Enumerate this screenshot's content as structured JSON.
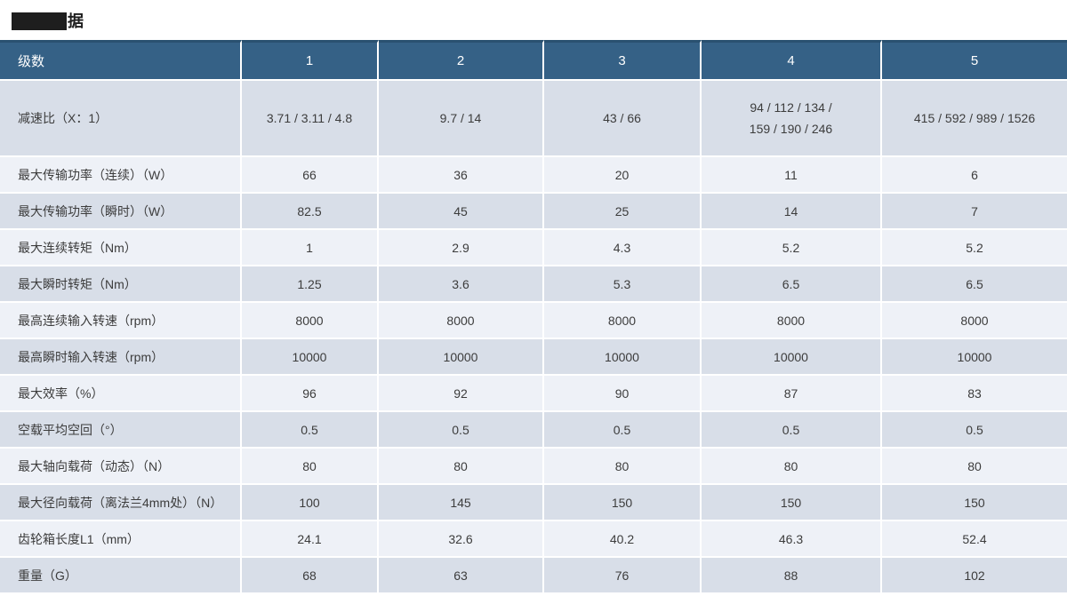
{
  "title": {
    "redacted": true,
    "visible_suffix": "据"
  },
  "colors": {
    "header_bg": "#356186",
    "header_top_line": "#2a5170",
    "row_dark": "#d8dee8",
    "row_light": "#eef1f7",
    "label_text": "#3c3c3c",
    "cell_text": "#3c3c3c"
  },
  "table": {
    "header": {
      "label": "级数",
      "columns": [
        "1",
        "2",
        "3",
        "4",
        "5"
      ]
    },
    "rows": [
      {
        "label": "减速比（X：1）",
        "values": [
          "3.71 / 3.11 / 4.8",
          "9.7 / 14",
          "43 / 66",
          "94 / 112 / 134 /\n159 / 190 / 246",
          "415 / 592 / 989 / 1526"
        ]
      },
      {
        "label": "最大传输功率（连续）（W）",
        "values": [
          "66",
          "36",
          "20",
          "11",
          "6"
        ]
      },
      {
        "label": "最大传输功率（瞬时）（W）",
        "values": [
          "82.5",
          "45",
          "25",
          "14",
          "7"
        ]
      },
      {
        "label": "最大连续转矩（Nm）",
        "values": [
          "1",
          "2.9",
          "4.3",
          "5.2",
          "5.2"
        ]
      },
      {
        "label": "最大瞬时转矩（Nm）",
        "values": [
          "1.25",
          "3.6",
          "5.3",
          "6.5",
          "6.5"
        ]
      },
      {
        "label": "最高连续输入转速（rpm）",
        "values": [
          "8000",
          "8000",
          "8000",
          "8000",
          "8000"
        ]
      },
      {
        "label": "最高瞬时输入转速（rpm）",
        "values": [
          "10000",
          "10000",
          "10000",
          "10000",
          "10000"
        ]
      },
      {
        "label": "最大效率（%）",
        "values": [
          "96",
          "92",
          "90",
          "87",
          "83"
        ]
      },
      {
        "label": "空载平均空回（°）",
        "values": [
          "0.5",
          "0.5",
          "0.5",
          "0.5",
          "0.5"
        ]
      },
      {
        "label": "最大轴向载荷（动态）（N）",
        "values": [
          "80",
          "80",
          "80",
          "80",
          "80"
        ]
      },
      {
        "label": "最大径向载荷（离法兰4mm处）（N）",
        "values": [
          "100",
          "145",
          "150",
          "150",
          "150"
        ]
      },
      {
        "label": "齿轮箱长度L1（mm）",
        "values": [
          "24.1",
          "32.6",
          "40.2",
          "46.3",
          "52.4"
        ]
      },
      {
        "label": "重量（G）",
        "values": [
          "68",
          "63",
          "76",
          "88",
          "102"
        ]
      }
    ]
  }
}
